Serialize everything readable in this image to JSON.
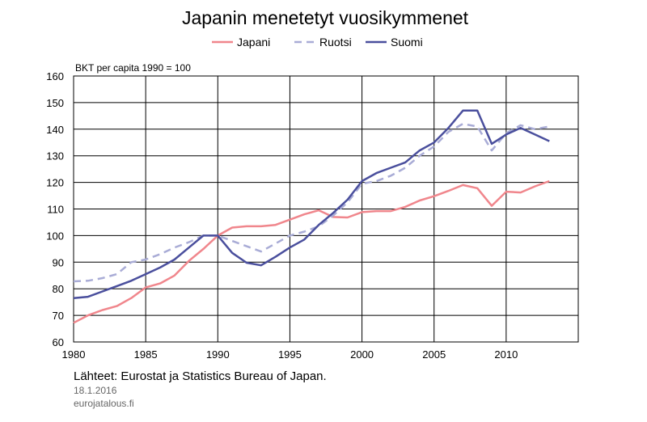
{
  "chart_data": {
    "type": "line",
    "title": "Japanin menetetyt vuosikymmenet",
    "ylabel": "BKT per capita 1990 = 100",
    "xlabel": "",
    "xlim": [
      1980,
      2015
    ],
    "ylim": [
      60,
      160
    ],
    "x_ticks": [
      "1980",
      "1985",
      "1990",
      "1995",
      "2000",
      "2005",
      "2010"
    ],
    "y_ticks": [
      "60",
      "70",
      "80",
      "90",
      "100",
      "110",
      "120",
      "130",
      "140",
      "150",
      "160"
    ],
    "grid": true,
    "legend_position": "top-center",
    "x": [
      1980,
      1981,
      1982,
      1983,
      1984,
      1985,
      1986,
      1987,
      1988,
      1989,
      1990,
      1991,
      1992,
      1993,
      1994,
      1995,
      1996,
      1997,
      1998,
      1999,
      2000,
      2001,
      2002,
      2003,
      2004,
      2005,
      2006,
      2007,
      2008,
      2009,
      2010,
      2011,
      2012,
      2013
    ],
    "series": [
      {
        "name": "Japani",
        "color": "#f0868c",
        "dash": "solid",
        "values": [
          67.2,
          70.0,
          72.0,
          73.5,
          76.5,
          80.5,
          82.0,
          85.0,
          90.5,
          95.0,
          100.0,
          103.0,
          103.5,
          103.5,
          104.0,
          106.0,
          108.0,
          109.5,
          107.0,
          106.8,
          108.8,
          109.2,
          109.2,
          110.8,
          113.2,
          114.8,
          116.8,
          119.0,
          117.8,
          111.2,
          116.5,
          116.2,
          118.5,
          120.5
        ]
      },
      {
        "name": "Ruotsi",
        "color": "#a9acd6",
        "dash": "dashed",
        "values": [
          82.8,
          83.0,
          84.0,
          85.5,
          90.0,
          91.0,
          93.0,
          95.5,
          97.5,
          100.0,
          100.0,
          98.0,
          96.0,
          94.0,
          97.0,
          100.0,
          101.5,
          103.5,
          107.5,
          112.5,
          119.5,
          120.5,
          122.5,
          125.5,
          130.0,
          133.5,
          139.0,
          142.0,
          141.0,
          132.0,
          138.5,
          141.5,
          140.0,
          141.0
        ]
      },
      {
        "name": "Suomi",
        "color": "#4a4f9d",
        "dash": "solid",
        "values": [
          76.5,
          77.0,
          79.0,
          81.0,
          83.0,
          85.5,
          88.0,
          91.0,
          95.5,
          100.0,
          100.0,
          93.5,
          89.8,
          88.8,
          92.0,
          95.5,
          98.5,
          104.0,
          108.5,
          113.5,
          120.5,
          123.5,
          125.5,
          127.5,
          132.0,
          135.0,
          140.5,
          147.0,
          147.0,
          134.5,
          138.0,
          140.5,
          138.0,
          135.5
        ]
      }
    ]
  },
  "footer": {
    "source": "Lähteet: Eurostat ja Statistics Bureau of Japan.",
    "date": "18.1.2016",
    "site": "eurojatalous.fi"
  }
}
